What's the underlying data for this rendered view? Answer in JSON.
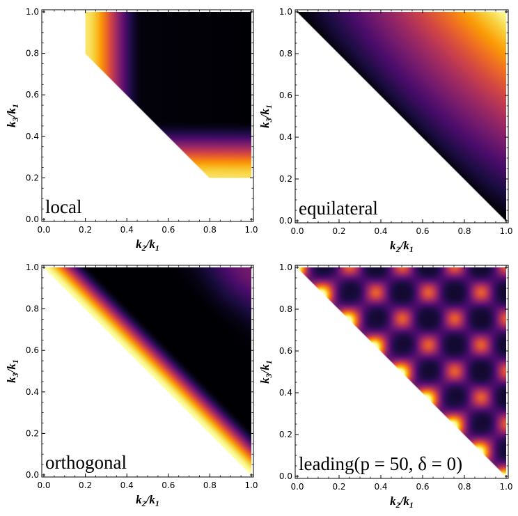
{
  "chart_data": [
    {
      "type": "heatmap",
      "title": "local",
      "label": "local",
      "xlabel": "k2/k1",
      "ylabel": "k3/k1",
      "xlabel_parts": [
        "k",
        "2",
        "/k",
        "1"
      ],
      "ylabel_parts": [
        "k",
        "3",
        "/k",
        "1"
      ],
      "xlim": [
        0,
        1
      ],
      "ylim": [
        0,
        1
      ],
      "xticks": [
        "0.0",
        "0.2",
        "0.4",
        "0.6",
        "0.8",
        "1.0"
      ],
      "yticks": [
        "0.0",
        "0.2",
        "0.4",
        "0.6",
        "0.8",
        "1.0"
      ],
      "domain": "x + y >= 1, 0.2 <= x <= 1, 0.2 <= y <= 1",
      "shape": "local"
    },
    {
      "type": "heatmap",
      "title": "equilateral",
      "label": "equilateral",
      "xlabel": "k2/k1",
      "ylabel": "k3/k1",
      "xlabel_parts": [
        "k",
        "2",
        "/k",
        "1"
      ],
      "ylabel_parts": [
        "k",
        "3",
        "/k",
        "1"
      ],
      "xlim": [
        0,
        1
      ],
      "ylim": [
        0,
        1
      ],
      "xticks": [
        "0.0",
        "0.2",
        "0.4",
        "0.6",
        "0.8",
        "1.0"
      ],
      "yticks": [
        "0.0",
        "0.2",
        "0.4",
        "0.6",
        "0.8",
        "1.0"
      ],
      "domain": "x + y >= 1",
      "shape": "equilateral"
    },
    {
      "type": "heatmap",
      "title": "orthogonal",
      "label": "orthogonal",
      "xlabel": "k2/k1",
      "ylabel": "k3/k1",
      "xlabel_parts": [
        "k",
        "2",
        "/k",
        "1"
      ],
      "ylabel_parts": [
        "k",
        "3",
        "/k",
        "1"
      ],
      "xlim": [
        0,
        1
      ],
      "ylim": [
        0,
        1
      ],
      "xticks": [
        "0.0",
        "0.2",
        "0.4",
        "0.6",
        "0.8",
        "1.0"
      ],
      "yticks": [
        "0.0",
        "0.2",
        "0.4",
        "0.6",
        "0.8",
        "1.0"
      ],
      "domain": "x + y >= 1",
      "shape": "orthogonal"
    },
    {
      "type": "heatmap",
      "title": "leading(p = 50, δ = 0)",
      "label": "leading(p = 50, δ = 0)",
      "xlabel": "k2/k1",
      "ylabel": "k3/k1",
      "xlabel_parts": [
        "k",
        "2",
        "/k",
        "1"
      ],
      "ylabel_parts": [
        "k",
        "3",
        "/k",
        "1"
      ],
      "xlim": [
        0,
        1
      ],
      "ylim": [
        0,
        1
      ],
      "xticks": [
        "0.0",
        "0.2",
        "0.4",
        "0.6",
        "0.8",
        "1.0"
      ],
      "yticks": [
        "0.0",
        "0.2",
        "0.4",
        "0.6",
        "0.8",
        "1.0"
      ],
      "domain": "x + y >= 1",
      "shape": "leading",
      "p": 50,
      "delta": 0
    }
  ],
  "colormap": [
    "#000004",
    "#1b0c41",
    "#4a0c6b",
    "#781c6d",
    "#a52c60",
    "#cf4446",
    "#ed6925",
    "#fb9b06",
    "#f7d13d",
    "#fcffa4"
  ]
}
